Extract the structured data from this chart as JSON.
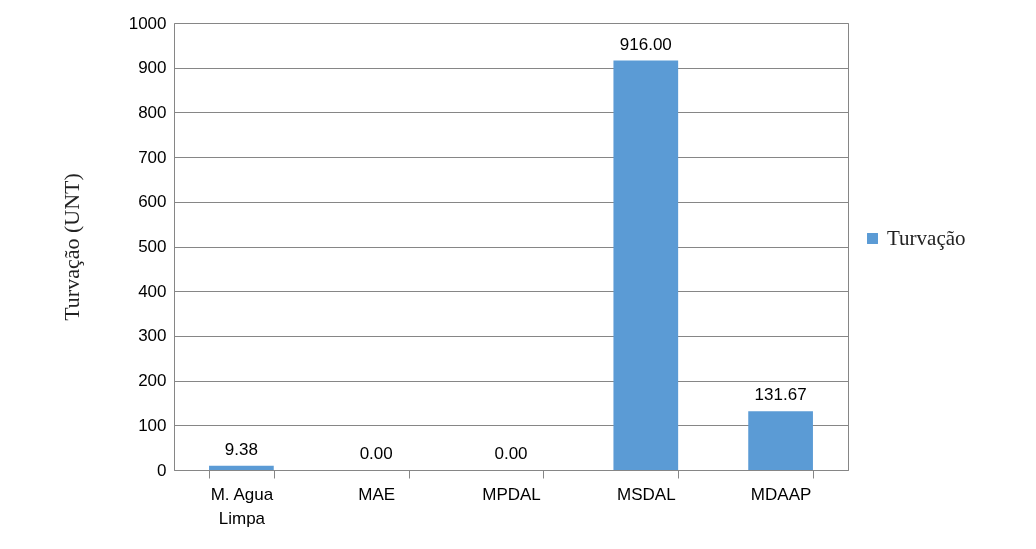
{
  "chart_data": {
    "type": "bar",
    "ylabel": "Turvação (UNT)",
    "categories": [
      "M. Agua Limpa",
      "MAE",
      "MPDAL",
      "MSDAL",
      "MDAAP"
    ],
    "series": [
      {
        "name": "Turvação",
        "color": "#5b9bd5",
        "values": [
          9.38,
          0,
          0,
          916,
          131.67
        ],
        "value_labels": [
          "9.38",
          "0.00",
          "0.00",
          "916.00",
          "131.67"
        ]
      }
    ],
    "ylim": [
      0,
      1000
    ],
    "yticks": [
      0,
      100,
      200,
      300,
      400,
      500,
      600,
      700,
      800,
      900,
      1000
    ],
    "grid": "y",
    "legend": "right"
  }
}
